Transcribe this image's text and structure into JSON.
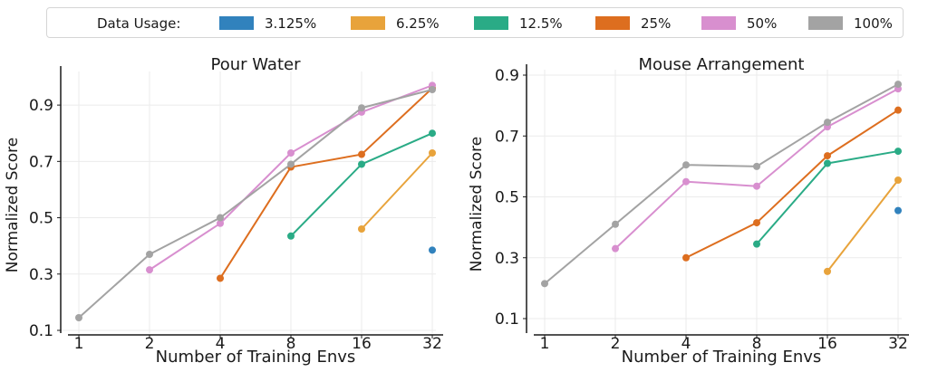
{
  "legend": {
    "title": "Data Usage:",
    "items": [
      {
        "label": "3.125%",
        "color": "#3182bd"
      },
      {
        "label": "6.25%",
        "color": "#e8a33b"
      },
      {
        "label": "12.5%",
        "color": "#2aab86"
      },
      {
        "label": "25%",
        "color": "#dd6e1f"
      },
      {
        "label": "50%",
        "color": "#d88fcf"
      },
      {
        "label": "100%",
        "color": "#a3a3a3"
      }
    ]
  },
  "chart_data": [
    {
      "type": "line",
      "title": "Pour Water",
      "xlabel": "Number of Training Envs",
      "ylabel": "Normalized Score",
      "x": [
        1,
        2,
        4,
        8,
        16,
        32
      ],
      "x_scale": "log2",
      "ylim": [
        0.1,
        1.0
      ],
      "yticks": [
        "0.1",
        "0.3",
        "0.5",
        "0.7",
        "0.9"
      ],
      "grid": true,
      "series": [
        {
          "name": "3.125%",
          "values": [
            null,
            null,
            null,
            null,
            null,
            0.385
          ]
        },
        {
          "name": "6.25%",
          "values": [
            null,
            null,
            null,
            null,
            0.46,
            0.73
          ]
        },
        {
          "name": "12.5%",
          "values": [
            null,
            null,
            null,
            0.435,
            0.69,
            0.8
          ]
        },
        {
          "name": "25%",
          "values": [
            null,
            null,
            0.285,
            0.68,
            0.725,
            0.96
          ]
        },
        {
          "name": "50%",
          "values": [
            null,
            0.315,
            0.48,
            0.73,
            0.875,
            0.97
          ]
        },
        {
          "name": "100%",
          "values": [
            0.145,
            0.37,
            0.5,
            0.69,
            0.89,
            0.955
          ]
        }
      ]
    },
    {
      "type": "line",
      "title": "Mouse Arrangement",
      "xlabel": "Number of Training Envs",
      "ylabel": "Normalized Score",
      "x": [
        1,
        2,
        4,
        8,
        16,
        32
      ],
      "x_scale": "log2",
      "ylim": [
        0.1,
        0.9
      ],
      "yticks": [
        "0.1",
        "0.3",
        "0.5",
        "0.7",
        "0.9"
      ],
      "grid": true,
      "series": [
        {
          "name": "3.125%",
          "values": [
            null,
            null,
            null,
            null,
            null,
            0.455
          ]
        },
        {
          "name": "6.25%",
          "values": [
            null,
            null,
            null,
            null,
            0.255,
            0.555
          ]
        },
        {
          "name": "12.5%",
          "values": [
            null,
            null,
            null,
            0.345,
            0.61,
            0.65
          ]
        },
        {
          "name": "25%",
          "values": [
            null,
            null,
            0.3,
            0.415,
            0.635,
            0.785
          ]
        },
        {
          "name": "50%",
          "values": [
            null,
            0.33,
            0.55,
            0.535,
            0.73,
            0.855
          ]
        },
        {
          "name": "100%",
          "values": [
            0.215,
            0.41,
            0.605,
            0.6,
            0.745,
            0.87
          ]
        }
      ]
    }
  ]
}
